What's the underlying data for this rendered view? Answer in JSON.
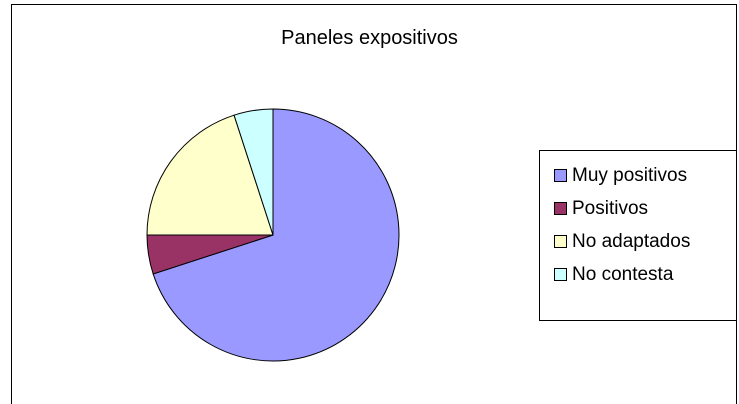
{
  "chart_data": {
    "type": "pie",
    "title": "Paneles expositivos",
    "categories": [
      "Muy positivos",
      "Positivos",
      "No adaptados",
      "No contesta"
    ],
    "values": [
      70,
      5,
      20,
      5
    ],
    "colors": [
      "#9999FF",
      "#993366",
      "#FFFFCC",
      "#CCFFFF"
    ],
    "legend_position": "right"
  }
}
